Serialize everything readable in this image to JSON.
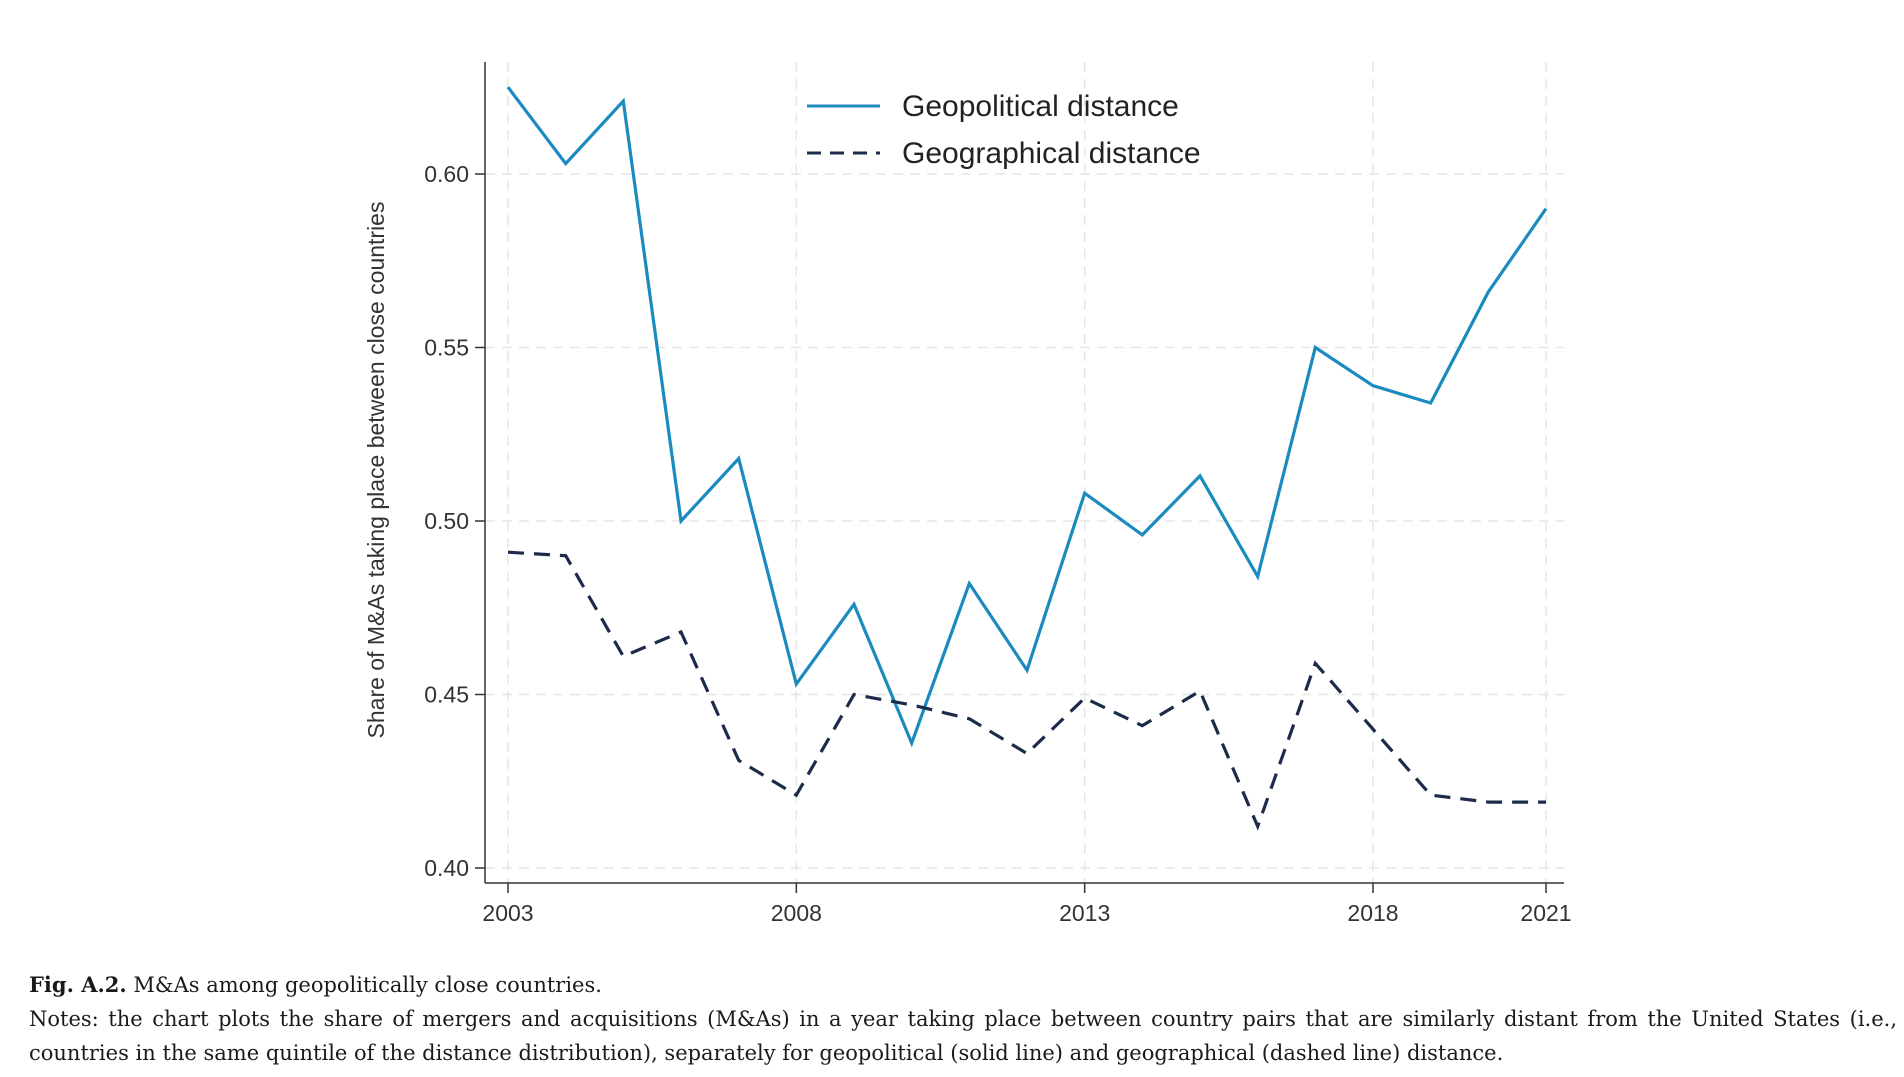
{
  "chart_data": {
    "type": "line",
    "title": "",
    "xlabel": "",
    "ylabel": "Share of M&As taking place between close countries",
    "x": [
      2003,
      2004,
      2005,
      2006,
      2007,
      2008,
      2009,
      2010,
      2011,
      2012,
      2013,
      2014,
      2015,
      2016,
      2017,
      2018,
      2019,
      2020,
      2021
    ],
    "xticks": [
      "2003",
      "2008",
      "2013",
      "2018",
      "2021"
    ],
    "yticks": [
      "0.40",
      "0.45",
      "0.50",
      "0.55",
      "0.60"
    ],
    "xlim": [
      2003,
      2021
    ],
    "ylim": [
      0.4,
      0.625
    ],
    "grid": true,
    "legend_position": "top-center",
    "series": [
      {
        "name": "Geopolitical distance",
        "style": "solid",
        "color": "#1b8bbf",
        "values": [
          0.625,
          0.603,
          0.621,
          0.5,
          0.518,
          0.453,
          0.476,
          0.436,
          0.482,
          0.457,
          0.508,
          0.496,
          0.513,
          0.484,
          0.55,
          0.539,
          0.534,
          0.566,
          0.59
        ]
      },
      {
        "name": "Geographical distance",
        "style": "dashed",
        "color": "#1c2b4a",
        "values": [
          0.491,
          0.49,
          0.461,
          0.468,
          0.431,
          0.421,
          0.45,
          0.447,
          0.443,
          0.433,
          0.449,
          0.441,
          0.451,
          0.412,
          0.459,
          0.44,
          0.421,
          0.419,
          0.419
        ]
      }
    ]
  },
  "caption": {
    "label": "Fig. A.2.",
    "title": "M&As among geopolitically close countries.",
    "notes": "Notes: the chart plots the share of mergers and acquisitions (M&As) in a year taking place between country pairs that are similarly distant from the United States (i.e., countries in the same quintile of the distance distribution), separately for geopolitical (solid line) and geographical (dashed line) distance."
  }
}
